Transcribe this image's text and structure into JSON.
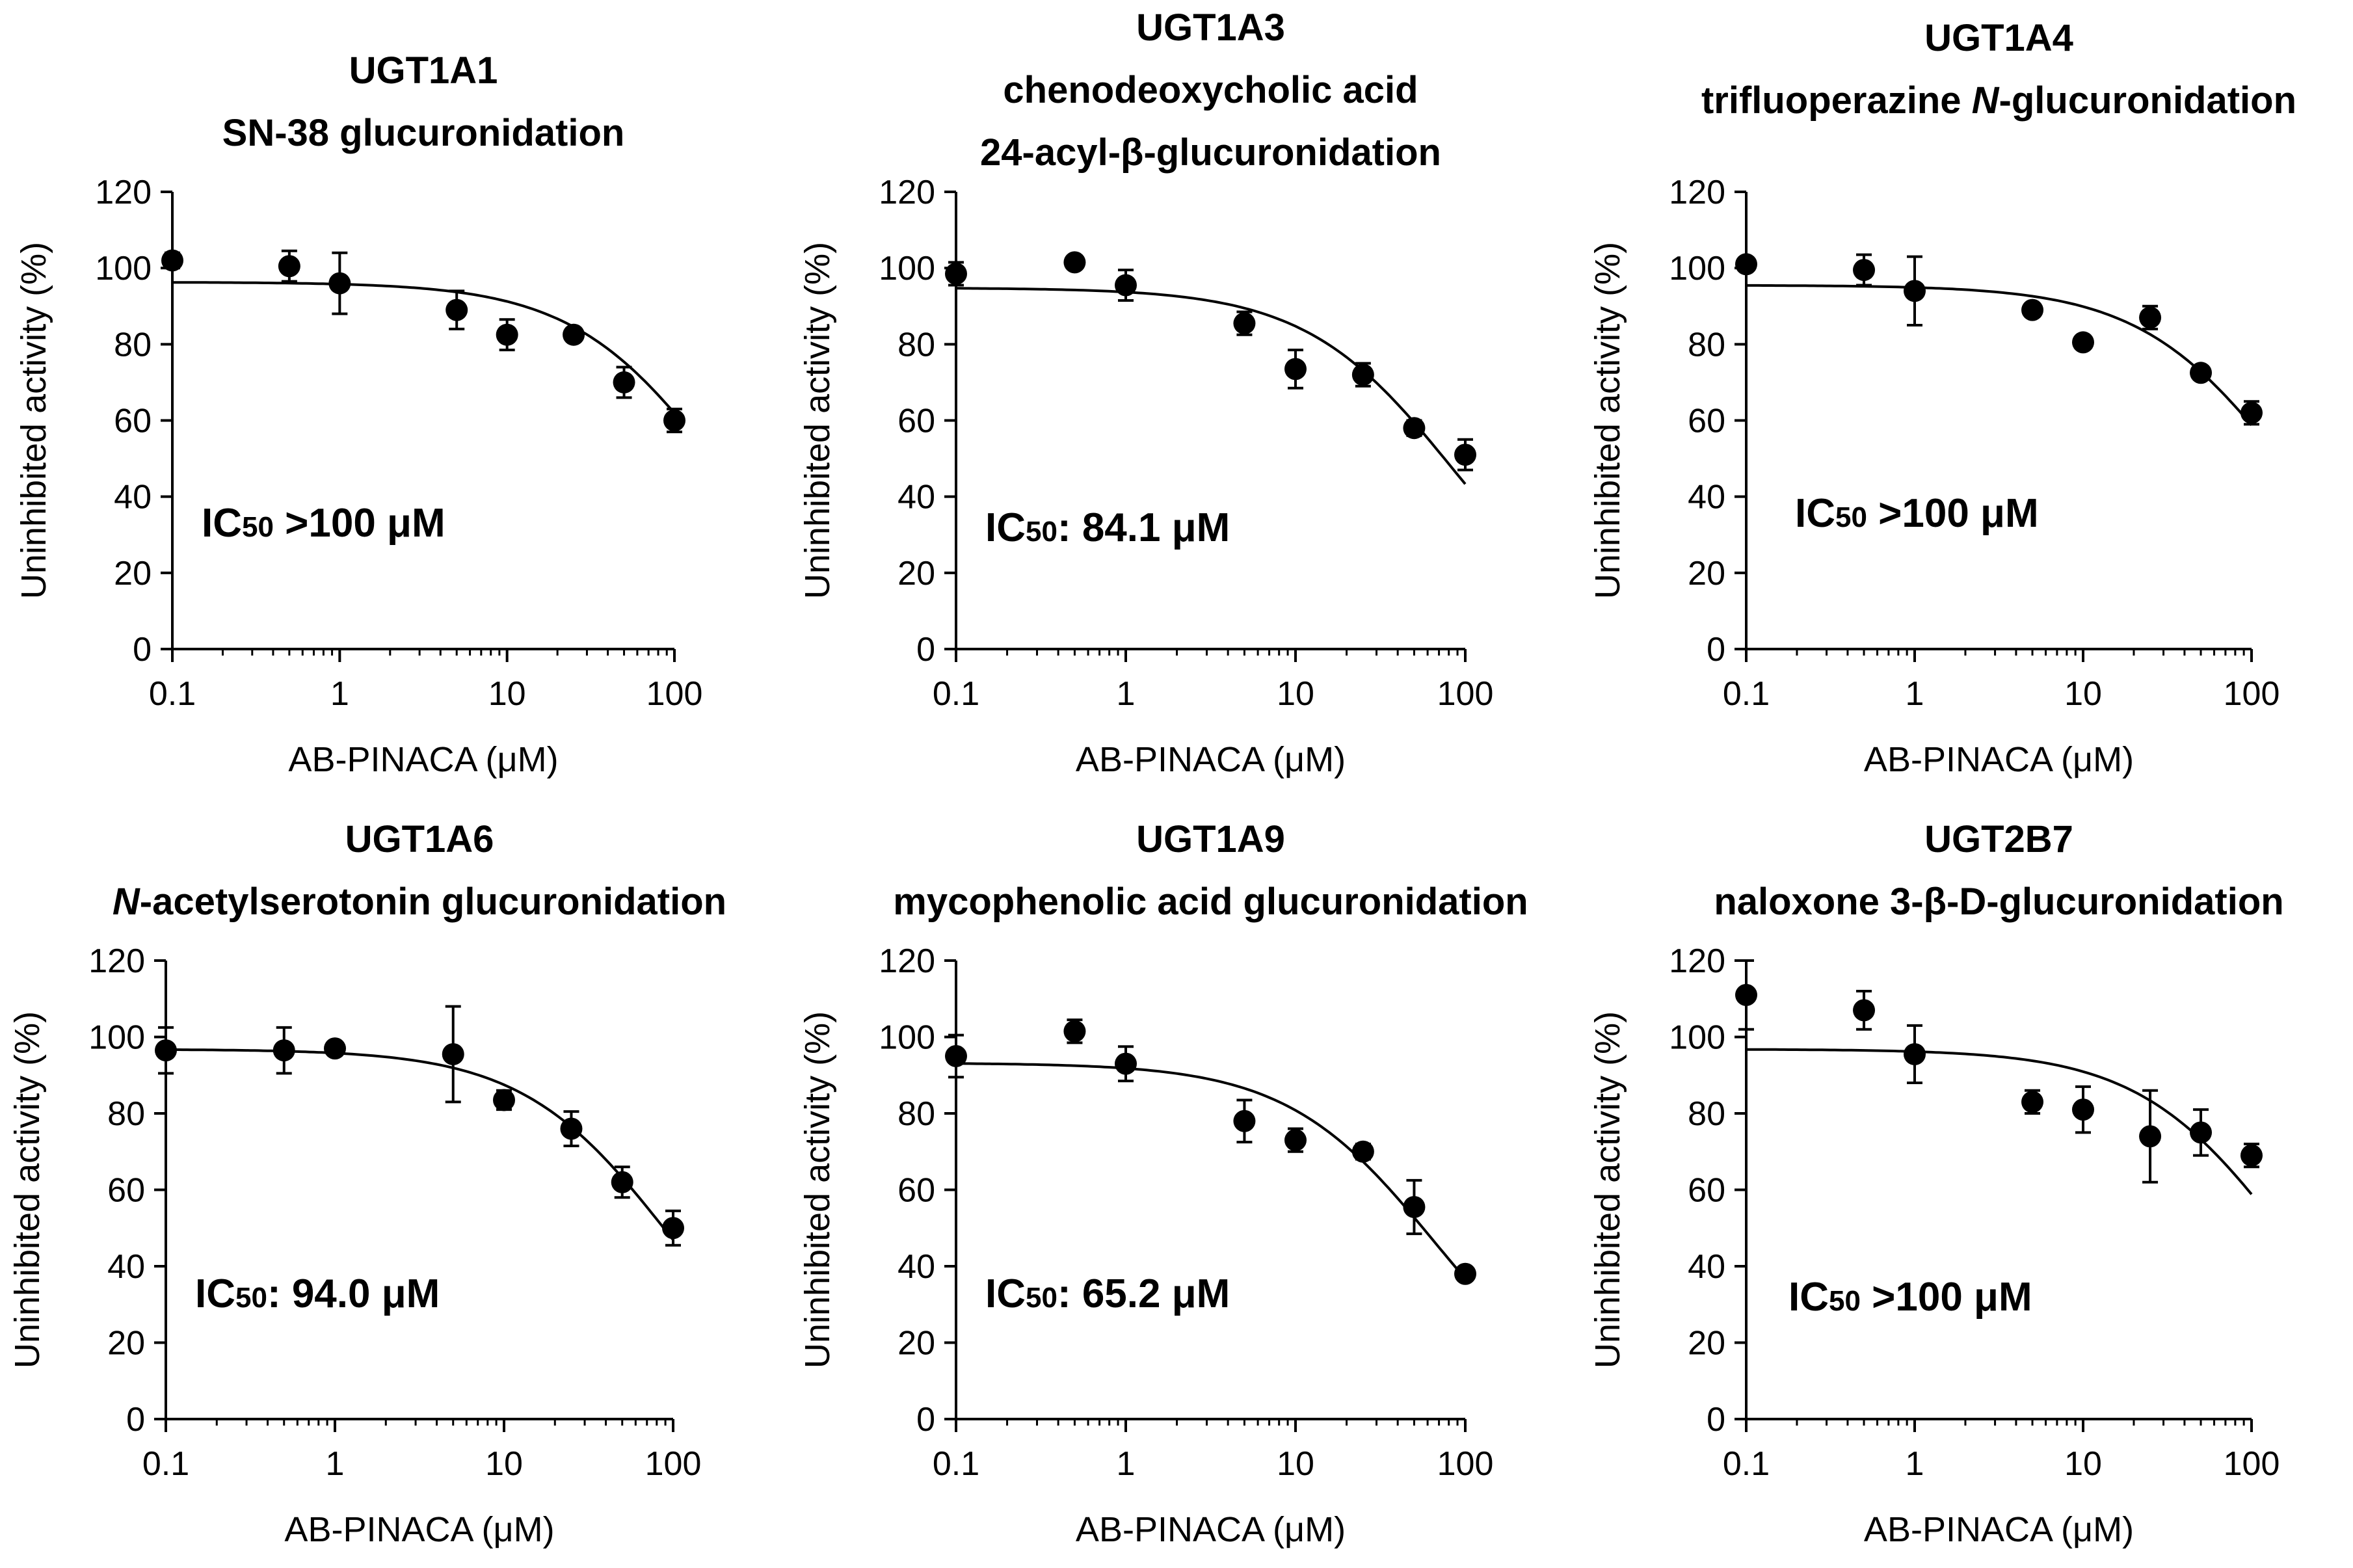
{
  "chart_data": [
    {
      "type": "scatter",
      "panel": "UGT1A1",
      "title_lines": [
        "UGT1A1",
        "SN-38 glucuronidation"
      ],
      "xlabel": "AB-PINACA (μM)",
      "ylabel": "Uninhibited activity (%)",
      "xscale": "log",
      "xlim": [
        0.1,
        100
      ],
      "ylim": [
        0,
        120
      ],
      "xticks": [
        "0.1",
        "1",
        "10",
        "100"
      ],
      "yticks": [
        "0",
        "20",
        "40",
        "60",
        "80",
        "100",
        "120"
      ],
      "ic50": {
        "prefix": "IC",
        "sub": "50",
        "text": " >100 μM"
      },
      "x": [
        0.1,
        0.5,
        1,
        5,
        10,
        25,
        50,
        100
      ],
      "y": [
        102,
        100.5,
        96,
        89,
        82.5,
        82.5,
        70,
        60
      ],
      "err": [
        2,
        4,
        8,
        5,
        4,
        1.5,
        4,
        3
      ],
      "fit": {
        "top": 96.3,
        "ic50": 180,
        "xmin": 0.1,
        "xmax": 100
      }
    },
    {
      "type": "scatter",
      "panel": "UGT1A3",
      "title_lines": [
        "UGT1A3",
        "chenodeoxycholic acid",
        "24-acyl-β-glucuronidation"
      ],
      "xlabel": "AB-PINACA (μM)",
      "ylabel": "Uninhibited activity (%)",
      "xscale": "log",
      "xlim": [
        0.1,
        100
      ],
      "ylim": [
        0,
        120
      ],
      "xticks": [
        "0.1",
        "1",
        "10",
        "100"
      ],
      "yticks": [
        "0",
        "20",
        "40",
        "60",
        "80",
        "100",
        "120"
      ],
      "ic50": {
        "prefix": "IC",
        "sub": "50",
        "text": ": 84.1 μM"
      },
      "x": [
        0.1,
        0.5,
        1,
        5,
        10,
        25,
        50,
        100
      ],
      "y": [
        98.5,
        101.5,
        95.5,
        85.5,
        73.5,
        72,
        58,
        51
      ],
      "err": [
        3,
        1.5,
        4,
        3,
        5,
        3,
        2,
        4
      ],
      "fit": {
        "top": 94.8,
        "ic50": 84.1,
        "xmin": 0.1,
        "xmax": 100
      }
    },
    {
      "type": "scatter",
      "panel": "UGT1A4",
      "title_lines": [
        "UGT1A4",
        "trifluoperazine N-glucuronidation"
      ],
      "xlabel": "AB-PINACA (μM)",
      "ylabel": "Uninhibited activity (%)",
      "xscale": "log",
      "xlim": [
        0.1,
        100
      ],
      "ylim": [
        0,
        120
      ],
      "xticks": [
        "0.1",
        "1",
        "10",
        "100"
      ],
      "yticks": [
        "0",
        "20",
        "40",
        "60",
        "80",
        "100",
        "120"
      ],
      "ic50": {
        "prefix": "IC",
        "sub": "50",
        "text": " >100 μM"
      },
      "x": [
        0.1,
        0.5,
        1,
        5,
        10,
        25,
        50,
        100
      ],
      "y": [
        101,
        99.5,
        94,
        89,
        80.5,
        87,
        72.5,
        62
      ],
      "err": [
        1.5,
        4,
        9,
        1.5,
        1.5,
        3,
        1.5,
        3
      ],
      "fit": {
        "top": 95.5,
        "ic50": 160,
        "xmin": 0.1,
        "xmax": 100
      }
    },
    {
      "type": "scatter",
      "panel": "UGT1A6",
      "title_lines": [
        "UGT1A6",
        "N-acetylserotonin glucuronidation"
      ],
      "xlabel": "AB-PINACA (μM)",
      "ylabel": "Uninhibited activity (%)",
      "xscale": "log",
      "xlim": [
        0.1,
        100
      ],
      "ylim": [
        0,
        120
      ],
      "xticks": [
        "0.1",
        "1",
        "10",
        "100"
      ],
      "yticks": [
        "0",
        "20",
        "40",
        "60",
        "80",
        "100",
        "120"
      ],
      "ic50": {
        "prefix": "IC",
        "sub": "50",
        "text": ": 94.0 μM"
      },
      "x": [
        0.1,
        0.5,
        1,
        5,
        10,
        25,
        50,
        100
      ],
      "y": [
        96.5,
        96.5,
        97,
        95.5,
        83.5,
        76,
        62,
        50
      ],
      "err": [
        6,
        6,
        1.5,
        12.5,
        2.5,
        4.5,
        4,
        4.5
      ],
      "fit": {
        "top": 96.8,
        "ic50": 94,
        "xmin": 0.1,
        "xmax": 100
      }
    },
    {
      "type": "scatter",
      "panel": "UGT1A9",
      "title_lines": [
        "UGT1A9",
        "mycophenolic acid glucuronidation"
      ],
      "xlabel": "AB-PINACA (μM)",
      "ylabel": "Uninhibited activity (%)",
      "xscale": "log",
      "xlim": [
        0.1,
        100
      ],
      "ylim": [
        0,
        120
      ],
      "xticks": [
        "0.1",
        "1",
        "10",
        "100"
      ],
      "yticks": [
        "0",
        "20",
        "40",
        "60",
        "80",
        "100",
        "120"
      ],
      "ic50": {
        "prefix": "IC",
        "sub": "50",
        "text": ": 65.2 μM"
      },
      "x": [
        0.1,
        0.5,
        1,
        5,
        10,
        25,
        50,
        100
      ],
      "y": [
        95,
        101.5,
        93,
        78,
        73,
        70,
        55.5,
        38
      ],
      "err": [
        5.5,
        3,
        4.5,
        5.5,
        3,
        2,
        7,
        1.5
      ],
      "fit": {
        "top": 93.2,
        "ic50": 65.2,
        "xmin": 0.1,
        "xmax": 100
      }
    },
    {
      "type": "scatter",
      "panel": "UGT2B7",
      "title_lines": [
        "UGT2B7",
        "naloxone 3-β-D-glucuronidation"
      ],
      "xlabel": "AB-PINACA (μM)",
      "ylabel": "Uninhibited activity (%)",
      "xscale": "log",
      "xlim": [
        0.1,
        100
      ],
      "ylim": [
        0,
        120
      ],
      "xticks": [
        "0.1",
        "1",
        "10",
        "100"
      ],
      "yticks": [
        "0",
        "20",
        "40",
        "60",
        "80",
        "100",
        "120"
      ],
      "ic50": {
        "prefix": "IC",
        "sub": "50",
        "text": " >100 μM"
      },
      "x": [
        0.1,
        0.5,
        1,
        5,
        10,
        25,
        50,
        100
      ],
      "y": [
        111,
        107,
        95.5,
        83,
        81,
        74,
        75,
        69
      ],
      "err": [
        9,
        5,
        7.5,
        3,
        6,
        12,
        6,
        3
      ],
      "fit": {
        "top": 96.8,
        "ic50": 155,
        "xmin": 0.1,
        "xmax": 100
      }
    }
  ]
}
